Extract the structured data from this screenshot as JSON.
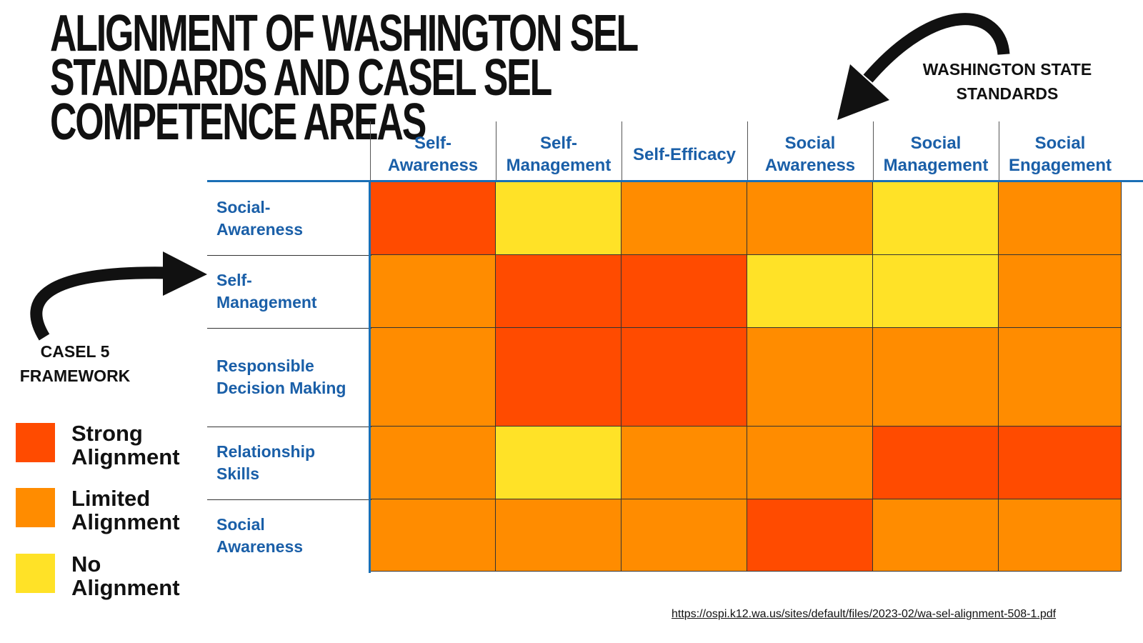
{
  "title_lines": [
    "ALIGNMENT OF WASHINGTON SEL",
    "STANDARDS AND CASEL SEL",
    "COMPETENCE AREAS"
  ],
  "callouts": {
    "washington": [
      "WASHINGTON STATE",
      "STANDARDS"
    ],
    "casel": [
      "CASEL 5",
      "FRAMEWORK"
    ]
  },
  "chart_data": {
    "type": "heatmap",
    "columns": [
      [
        "Self-",
        "Awareness"
      ],
      [
        "Self-",
        "Management"
      ],
      [
        "Self-Efficacy"
      ],
      [
        "Social",
        "Awareness"
      ],
      [
        "Social",
        "Management"
      ],
      [
        "Social",
        "Engagement"
      ]
    ],
    "rows": [
      [
        "Social-",
        "Awareness"
      ],
      [
        "Self-",
        "Management"
      ],
      [
        "Responsible",
        "Decision Making"
      ],
      [
        "Relationship",
        "Skills"
      ],
      [
        "Social",
        "Awareness"
      ]
    ],
    "levels": {
      "S": "Strong Alignment",
      "L": "Limited Alignment",
      "N": "No Alignment"
    },
    "values": [
      [
        "S",
        "N",
        "L",
        "L",
        "N",
        "L"
      ],
      [
        "L",
        "S",
        "S",
        "N",
        "N",
        "L"
      ],
      [
        "L",
        "S",
        "S",
        "L",
        "L",
        "L"
      ],
      [
        "L",
        "N",
        "L",
        "L",
        "S",
        "S"
      ],
      [
        "L",
        "L",
        "L",
        "S",
        "L",
        "L"
      ]
    ],
    "colors": {
      "S": "#ff4b00",
      "L": "#ff8c00",
      "N": "#ffe227"
    }
  },
  "legend": [
    {
      "key": "S",
      "lines": [
        "Strong",
        "Alignment"
      ]
    },
    {
      "key": "L",
      "lines": [
        "Limited",
        "Alignment"
      ]
    },
    {
      "key": "N",
      "lines": [
        "No",
        "Alignment"
      ]
    }
  ],
  "source_url": "https://ospi.k12.wa.us/sites/default/files/2023-02/wa-sel-alignment-508-1.pdf"
}
